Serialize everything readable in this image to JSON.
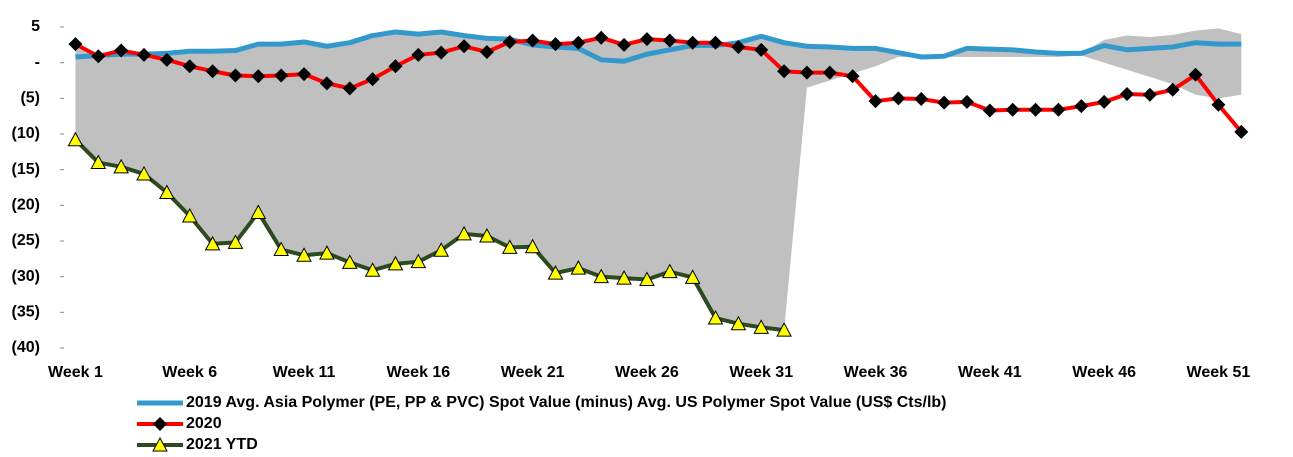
{
  "chart_data": {
    "type": "line",
    "categories": [
      "Week 1",
      null,
      null,
      null,
      null,
      "Week 6",
      null,
      null,
      null,
      null,
      "Week 11",
      null,
      null,
      null,
      null,
      "Week 16",
      null,
      null,
      null,
      null,
      "Week 21",
      null,
      null,
      null,
      null,
      "Week 26",
      null,
      null,
      null,
      null,
      "Week 31",
      null,
      null,
      null,
      null,
      "Week 36",
      null,
      null,
      null,
      null,
      "Week 41",
      null,
      null,
      null,
      null,
      "Week 46",
      null,
      null,
      null,
      null,
      "Week 51",
      null
    ],
    "range": {
      "color": "#c0c0c0",
      "upper": [
        2.6,
        1.0,
        1.7,
        1.2,
        1.3,
        1.6,
        1.6,
        1.7,
        2.6,
        2.6,
        2.9,
        2.3,
        2.8,
        3.8,
        4.3,
        4.0,
        4.3,
        3.8,
        3.4,
        3.3,
        3.1,
        2.6,
        2.8,
        3.5,
        2.5,
        3.3,
        3.1,
        2.8,
        2.8,
        2.8,
        3.7,
        2.8,
        2.3,
        2.2,
        2.0,
        2.0,
        1.4,
        0.8,
        0.9,
        2.0,
        1.9,
        1.8,
        1.5,
        1.3,
        1.3,
        3.2,
        3.8,
        3.6,
        3.9,
        4.5,
        4.8,
        4.0
      ],
      "lower": [
        -10.8,
        -14,
        -14.6,
        -15.6,
        -18.2,
        -21.5,
        -25.4,
        -25.2,
        -21,
        -26.2,
        -27,
        -26.7,
        -28,
        -29.1,
        -28.2,
        -27.9,
        -26.3,
        -24,
        -24.3,
        -25.9,
        -25.8,
        -29.5,
        -28.8,
        -30,
        -30.2,
        -30.4,
        -29.3,
        -30.1,
        -35.8,
        -36.6,
        -37.1,
        -37.5,
        -3.5,
        -2.5,
        -1.5,
        -0.5,
        0.8,
        0.8,
        0.8,
        0.8,
        0.8,
        0.8,
        0.8,
        0.8,
        1,
        0,
        -1,
        -2,
        -3,
        -4.5,
        -5,
        -4.5
      ]
    },
    "series": [
      {
        "name": "2019 Avg. Asia Polymer (PE, PP & PVC) Spot Value (minus) Avg. US Polymer Spot Value (US$ Cts/lb)",
        "color": "#3399cc",
        "values": [
          0.8,
          1.0,
          1.2,
          1.2,
          1.3,
          1.6,
          1.6,
          1.7,
          2.6,
          2.6,
          2.9,
          2.3,
          2.8,
          3.8,
          4.3,
          4.0,
          4.3,
          3.8,
          3.4,
          3.3,
          2.5,
          2.2,
          2.0,
          0.4,
          0.2,
          1.2,
          1.8,
          2.4,
          2.4,
          2.8,
          3.7,
          2.8,
          2.3,
          2.2,
          2.0,
          2.0,
          1.4,
          0.8,
          0.9,
          2.0,
          1.9,
          1.8,
          1.5,
          1.3,
          1.3,
          2.4,
          1.8,
          2.0,
          2.2,
          2.8,
          2.6,
          2.6
        ]
      },
      {
        "name": "2020",
        "color": "#ff0000",
        "marker": "diamond",
        "values": [
          2.6,
          0.9,
          1.7,
          1.1,
          0.4,
          -0.5,
          -1.2,
          -1.8,
          -1.9,
          -1.8,
          -1.6,
          -2.9,
          -3.6,
          -2.3,
          -0.5,
          1.1,
          1.4,
          2.3,
          1.5,
          2.9,
          3.1,
          2.6,
          2.8,
          3.5,
          2.5,
          3.3,
          3.1,
          2.8,
          2.8,
          2.2,
          1.8,
          -1.2,
          -1.4,
          -1.4,
          -1.9,
          -5.4,
          -5.0,
          -5.1,
          -5.6,
          -5.5,
          -6.7,
          -6.6,
          -6.6,
          -6.6,
          -6.1,
          -5.5,
          -4.4,
          -4.5,
          -3.8,
          -1.7,
          -5.9,
          -9.7
        ]
      },
      {
        "name": "2021 YTD",
        "color": "#2d4a1e",
        "marker": "triangle",
        "values": [
          -10.8,
          -14,
          -14.6,
          -15.6,
          -18.2,
          -21.5,
          -25.4,
          -25.2,
          -21,
          -26.2,
          -27,
          -26.7,
          -28,
          -29.1,
          -28.2,
          -27.9,
          -26.3,
          -24,
          -24.3,
          -25.9,
          -25.8,
          -29.5,
          -28.8,
          -30,
          -30.2,
          -30.4,
          -29.3,
          -30.1,
          -35.8,
          -36.6,
          -37.1,
          -37.5,
          null,
          null,
          null,
          null,
          null,
          null,
          null,
          null,
          null,
          null,
          null,
          null,
          null,
          null,
          null,
          null,
          null,
          null,
          null,
          null
        ]
      }
    ],
    "ylim": [
      -40,
      5
    ],
    "yticks": [
      5,
      {
        "value": 0,
        "label": "-"
      },
      {
        "value": -5,
        "label": "(5)"
      },
      {
        "value": -10,
        "label": "(10)"
      },
      {
        "value": -15,
        "label": "(15)"
      },
      {
        "value": -20,
        "label": "(20)"
      },
      {
        "value": -25,
        "label": "(25)"
      },
      {
        "value": -30,
        "label": "(30)"
      },
      {
        "value": -35,
        "label": "(35)"
      },
      {
        "value": -40,
        "label": "(40)"
      }
    ]
  }
}
